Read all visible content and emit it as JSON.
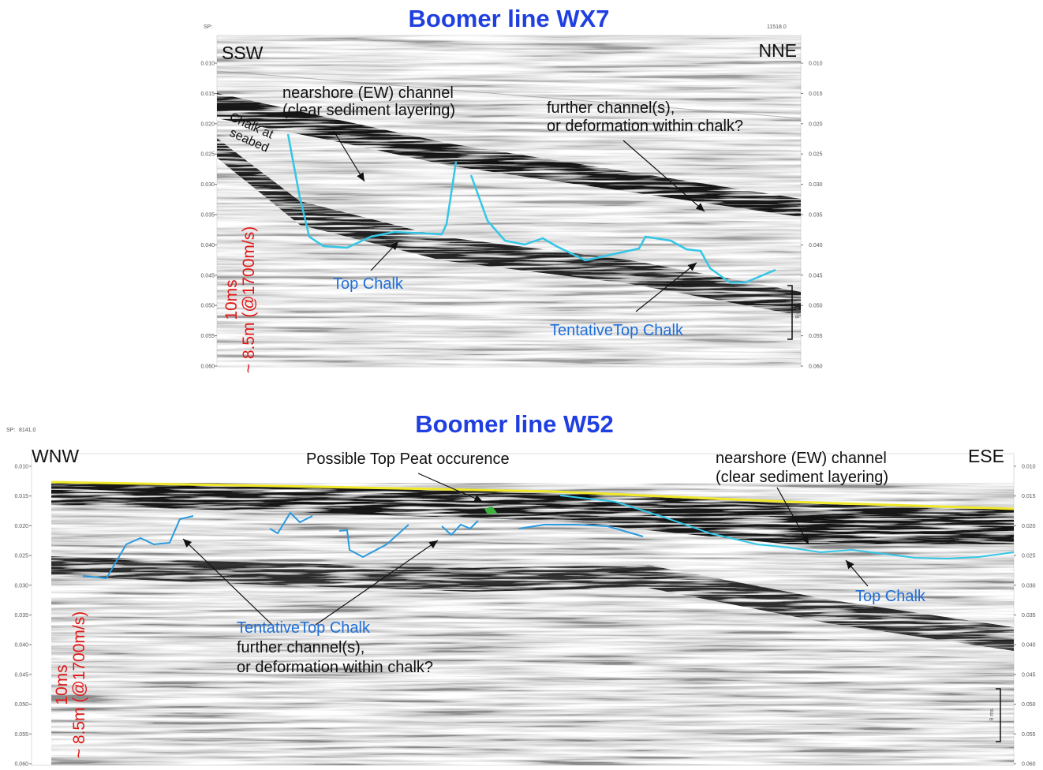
{
  "panels": [
    {
      "title": "Boomer line WX7",
      "sp_label": "SP:",
      "sp_end": "11518.0",
      "left_direction": "SSW",
      "right_direction": "NNE",
      "depth_ticks": [
        "0.010",
        "0.015",
        "0.020",
        "0.025",
        "0.030",
        "0.035",
        "0.040",
        "0.045",
        "0.050",
        "0.055",
        "0.060"
      ],
      "scale_label": "9 ms",
      "velocity_note": [
        "10ms",
        "~ 8.5m (@1700m/s)"
      ],
      "annotations": [
        {
          "lines": [
            "Chalk at",
            "seabed"
          ]
        },
        {
          "lines": [
            "nearshore (EW) channel",
            "(clear sediment layering)"
          ]
        },
        {
          "lines": [
            "further channel(s),",
            "or deformation within chalk?"
          ]
        },
        {
          "lines": [
            "Top Chalk"
          ]
        },
        {
          "lines": [
            "TentativeTop Chalk"
          ]
        }
      ]
    },
    {
      "title": "Boomer line W52",
      "sp_label": "SP:",
      "sp_start": "8141.0",
      "left_direction": "WNW",
      "right_direction": "ESE",
      "depth_ticks": [
        "0.010",
        "0.015",
        "0.020",
        "0.025",
        "0.030",
        "0.035",
        "0.040",
        "0.045",
        "0.050",
        "0.055",
        "0.060"
      ],
      "scale_label": "9 ms",
      "velocity_note": [
        "10ms",
        "~ 8.5m (@1700m/s)"
      ],
      "annotations": [
        {
          "lines": [
            "Possible Top Peat occurence"
          ]
        },
        {
          "lines": [
            "nearshore (EW) channel",
            "(clear sediment layering)"
          ]
        },
        {
          "lines": [
            "Top Chalk"
          ]
        },
        {
          "lines": [
            "TentativeTop Chalk"
          ]
        },
        {
          "lines": [
            "further channel(s),",
            "or deformation within chalk?"
          ]
        }
      ]
    }
  ]
}
